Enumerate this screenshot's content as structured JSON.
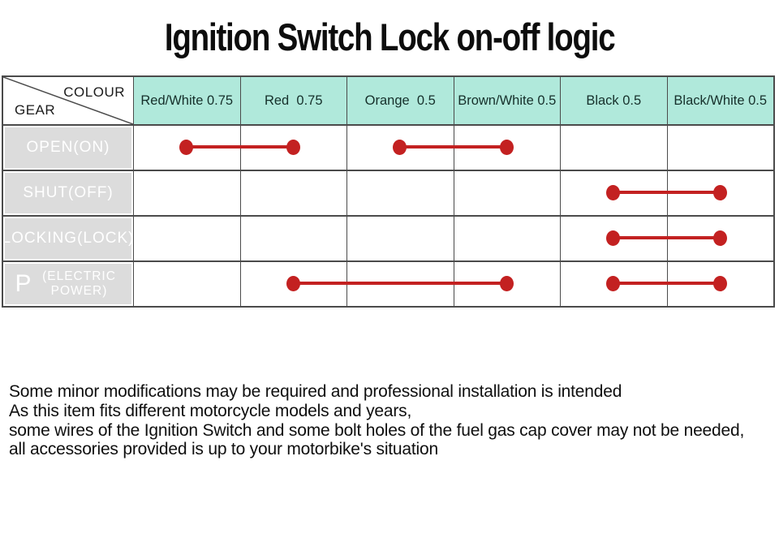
{
  "title": "Ignition Switch Lock on-off logic",
  "table": {
    "corner": {
      "top_label": "COLOUR",
      "bottom_label": "GEAR"
    },
    "columns": [
      "Red/White 0.75",
      "Red  0.75",
      "Orange  0.5",
      "Brown/White 0.5",
      "Black 0.5",
      "Black/White 0.5"
    ],
    "rows": [
      {
        "label": "OPEN(ON)"
      },
      {
        "label": "SHUT(OFF)"
      },
      {
        "label": "LOCKING(LOCK)"
      },
      {
        "label_main": "P",
        "label_sub": "(ELECTRIC POWER)"
      }
    ],
    "connections": [
      {
        "row": 0,
        "from_col": 1,
        "to_col": 2
      },
      {
        "row": 0,
        "from_col": 3,
        "to_col": 4
      },
      {
        "row": 1,
        "from_col": 5,
        "to_col": 6
      },
      {
        "row": 2,
        "from_col": 5,
        "to_col": 6
      },
      {
        "row": 3,
        "from_col": 2,
        "to_col": 4
      },
      {
        "row": 3,
        "from_col": 5,
        "to_col": 6
      }
    ]
  },
  "colors": {
    "header_bg": "#b0e9db",
    "row_label_bg": "#dcdcdc",
    "connector_red": "#c32121",
    "grid_border": "#4b4b4b"
  },
  "notes": [
    "Some minor modifications may be required and professional installation is intended",
    "As this item fits different motorcycle models and years,",
    "some wires of the Ignition Switch and some bolt holes of the fuel gas cap cover may not be needed,",
    "all accessories provided is up to your motorbike's situation"
  ]
}
